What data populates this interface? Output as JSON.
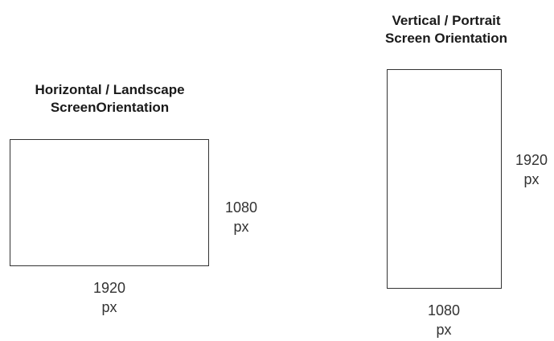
{
  "landscape": {
    "title_line1": "Horizontal / Landscape",
    "title_line2": "ScreenOrientation",
    "height_value": "1080",
    "height_unit": "px",
    "width_value": "1920",
    "width_unit": "px"
  },
  "portrait": {
    "title_line1": "Vertical / Portrait",
    "title_line2": "Screen Orientation",
    "height_value": "1920",
    "height_unit": "px",
    "width_value": "1080",
    "width_unit": "px"
  }
}
